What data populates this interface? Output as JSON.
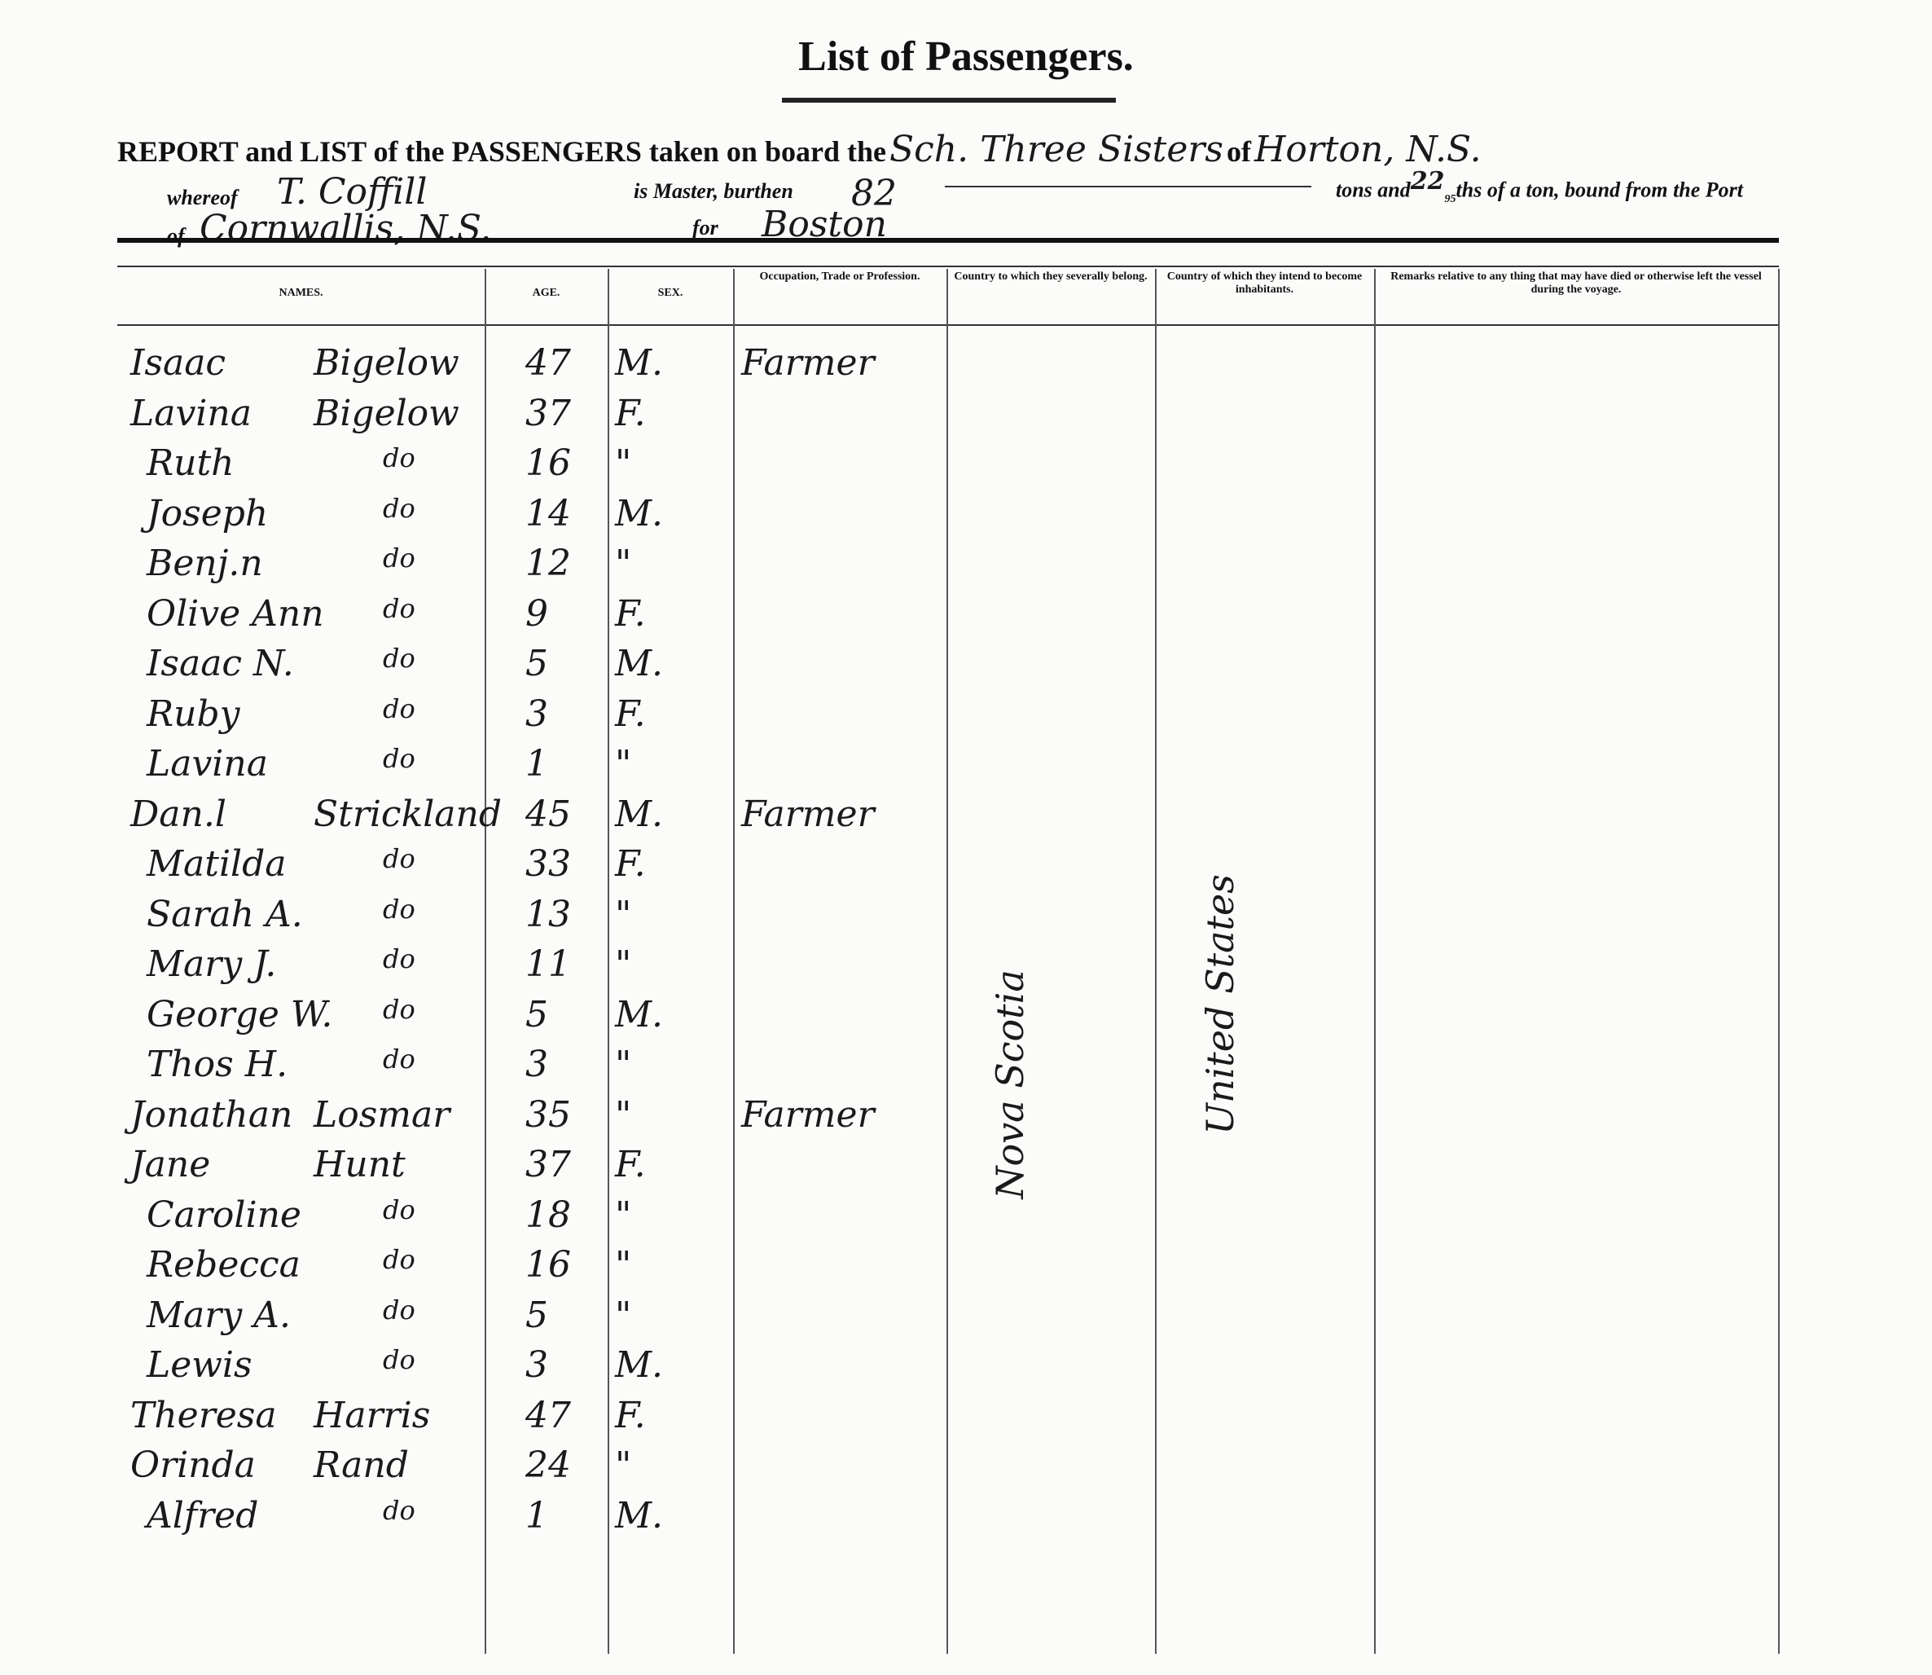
{
  "header": {
    "title": "List of Passengers.",
    "report": {
      "lead": "REPORT and LIST of the PASSENGERS taken on board the",
      "vessel": "Sch. Three Sisters",
      "of": "of",
      "home_port": "Horton, N.S."
    },
    "master_line": {
      "whereof": "whereof",
      "master": "T. Coffill",
      "is_master": "is Master, burthen",
      "tons": 82,
      "tons_and": "tons and",
      "fraction_num": 22,
      "fraction_den": 95,
      "rest": "ths of a ton, bound from the Port"
    },
    "port_line": {
      "of": "of",
      "from_port": "Cornwallis, N.S.",
      "for": "for",
      "destination": "Boston"
    }
  },
  "table": {
    "columns": [
      "NAMES.",
      "AGE.",
      "SEX.",
      "Occupation, Trade or Profession.",
      "Country to which they severally belong.",
      "Country of which they intend to become inhabitants.",
      "Remarks relative to any thing that may have died or otherwise left the vessel during the voyage."
    ],
    "rows": [
      {
        "name": "Isaac",
        "surname": "Bigelow",
        "age": 47,
        "sex": "M.",
        "occupation": "Farmer"
      },
      {
        "name": "Lavina",
        "surname": "Bigelow",
        "age": 37,
        "sex": "F."
      },
      {
        "name": "Ruth",
        "surname": "do",
        "age": 16,
        "sex": "\""
      },
      {
        "name": "Joseph",
        "surname": "do",
        "age": 14,
        "sex": "M."
      },
      {
        "name": "Benj.n",
        "surname": "do",
        "age": 12,
        "sex": "\""
      },
      {
        "name": "Olive Ann",
        "surname": "do",
        "age": 9,
        "sex": "F."
      },
      {
        "name": "Isaac N.",
        "surname": "do",
        "age": 5,
        "sex": "M."
      },
      {
        "name": "Ruby",
        "surname": "do",
        "age": 3,
        "sex": "F."
      },
      {
        "name": "Lavina",
        "surname": "do",
        "age": 1,
        "sex": "\""
      },
      {
        "name": "Dan.l",
        "surname": "Strickland",
        "age": 45,
        "sex": "M.",
        "occupation": "Farmer"
      },
      {
        "name": "Matilda",
        "surname": "do",
        "age": 33,
        "sex": "F."
      },
      {
        "name": "Sarah A.",
        "surname": "do",
        "age": 13,
        "sex": "\""
      },
      {
        "name": "Mary J.",
        "surname": "do",
        "age": 11,
        "sex": "\""
      },
      {
        "name": "George W.",
        "surname": "do",
        "age": 5,
        "sex": "M."
      },
      {
        "name": "Thos H.",
        "surname": "do",
        "age": 3,
        "sex": "\""
      },
      {
        "name": "Jonathan",
        "surname": "Losmar",
        "age": 35,
        "sex": "\"",
        "occupation": "Farmer"
      },
      {
        "name": "Jane",
        "surname": "Hunt",
        "age": 37,
        "sex": "F."
      },
      {
        "name": "Caroline",
        "surname": "do",
        "age": 18,
        "sex": "\""
      },
      {
        "name": "Rebecca",
        "surname": "do",
        "age": 16,
        "sex": "\""
      },
      {
        "name": "Mary A.",
        "surname": "do",
        "age": 5,
        "sex": "\""
      },
      {
        "name": "Lewis",
        "surname": "do",
        "age": 3,
        "sex": "M."
      },
      {
        "name": "Theresa",
        "surname": "Harris",
        "age": 47,
        "sex": "F."
      },
      {
        "name": "Orinda",
        "surname": "Rand",
        "age": 24,
        "sex": "\""
      },
      {
        "name": "Alfred",
        "surname": "do",
        "age": 1,
        "sex": "M."
      }
    ],
    "country_belong": "Nova Scotia",
    "country_intend": "United States"
  }
}
